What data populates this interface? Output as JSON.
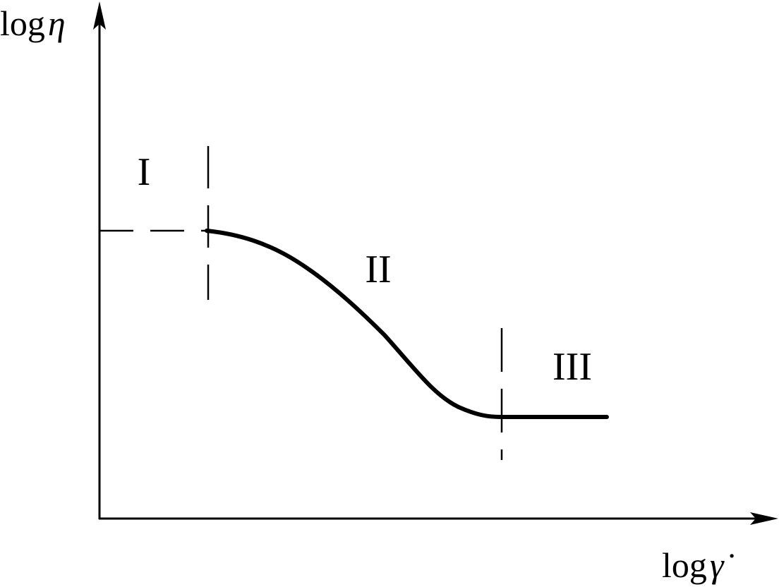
{
  "axes": {
    "y_label": {
      "prefix": "log",
      "symbol": "η"
    },
    "x_label": {
      "prefix": "log",
      "symbol": "γ̇"
    }
  },
  "regions": [
    {
      "label": "I"
    },
    {
      "label": "II"
    },
    {
      "label": "III"
    }
  ]
}
